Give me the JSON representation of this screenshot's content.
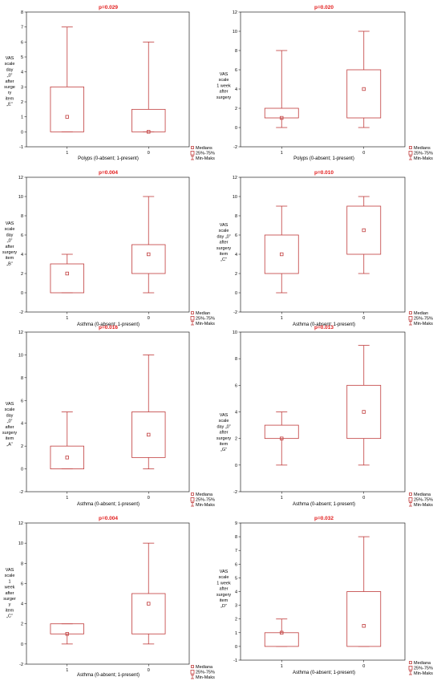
{
  "chart_data": [
    {
      "type": "boxplot",
      "title": "p=0.029",
      "xlabel": "Polyps (0-absent; 1-present)",
      "ylabel": [
        "VAS",
        "scale",
        "day",
        "„0”",
        "after",
        "surge",
        "ry",
        "item",
        "„E”"
      ],
      "ylim": [
        -1,
        8
      ],
      "yticks": [
        -1,
        0,
        1,
        2,
        3,
        4,
        5,
        6,
        7,
        8
      ],
      "categories": [
        "1",
        "0"
      ],
      "boxes": [
        {
          "min": 0,
          "q1": 0,
          "median": 1,
          "q3": 3,
          "max": 7
        },
        {
          "min": 0,
          "q1": 0,
          "median": 0,
          "q3": 1.5,
          "max": 6
        }
      ],
      "legend": [
        "Medians",
        "25%-75%",
        "Min-Maks"
      ]
    },
    {
      "type": "boxplot",
      "title": "p=0.020",
      "xlabel": "Polyps (0-absent; 1-present)",
      "ylabel": [
        "VAS",
        "scale",
        "1 week",
        "after",
        "surgery"
      ],
      "ylim": [
        -2,
        12
      ],
      "yticks": [
        -2,
        0,
        2,
        4,
        6,
        8,
        10,
        12
      ],
      "categories": [
        "1",
        "0"
      ],
      "boxes": [
        {
          "min": 0,
          "q1": 1,
          "median": 1,
          "q3": 2,
          "max": 8
        },
        {
          "min": 0,
          "q1": 1,
          "median": 4,
          "q3": 6,
          "max": 10
        }
      ],
      "legend": [
        "Medians",
        "25%-75%",
        "Min-Maks"
      ]
    },
    {
      "type": "boxplot",
      "title": "p=0.004",
      "xlabel": "Asthma (0-absent; 1-present)",
      "ylabel": [
        "VAS",
        "scale",
        "day",
        "„0”",
        "after",
        "surgery",
        "item",
        "„B”"
      ],
      "ylim": [
        -2,
        12
      ],
      "yticks": [
        -2,
        0,
        2,
        4,
        6,
        8,
        10,
        12
      ],
      "categories": [
        "1",
        "0"
      ],
      "boxes": [
        {
          "min": 0,
          "q1": 0,
          "median": 2,
          "q3": 3,
          "max": 4
        },
        {
          "min": 0,
          "q1": 2,
          "median": 4,
          "q3": 5,
          "max": 10
        }
      ],
      "legend": [
        "Median",
        "25%-75%",
        "Min-Maks"
      ]
    },
    {
      "type": "boxplot",
      "title": "p=0.010",
      "xlabel": "Asthma (0-absent; 1-present)",
      "ylabel": [
        "VAS",
        "scale",
        "day „0”",
        "after",
        "surgery",
        "item",
        "„C”"
      ],
      "ylim": [
        -2,
        12
      ],
      "yticks": [
        -2,
        0,
        2,
        4,
        6,
        8,
        10,
        12
      ],
      "categories": [
        "1",
        "0"
      ],
      "boxes": [
        {
          "min": 0,
          "q1": 2,
          "median": 4,
          "q3": 6,
          "max": 9
        },
        {
          "min": 2,
          "q1": 4,
          "median": 6.5,
          "q3": 9,
          "max": 10
        }
      ],
      "legend": [
        "Median",
        "25%-75%",
        "Min-Maks"
      ]
    },
    {
      "type": "boxplot",
      "title": "p=0.016",
      "xlabel": "Asthma (0-absent; 1-present)",
      "ylabel": [
        "VAS",
        "scale",
        "day",
        "„0”",
        "after",
        "surgery",
        "item",
        "„A”"
      ],
      "ylim": [
        -2,
        12
      ],
      "yticks": [
        -2,
        0,
        2,
        4,
        6,
        8,
        10,
        12
      ],
      "categories": [
        "1",
        "0"
      ],
      "boxes": [
        {
          "min": 0,
          "q1": 0,
          "median": 1,
          "q3": 2,
          "max": 5
        },
        {
          "min": 0,
          "q1": 1,
          "median": 3,
          "q3": 5,
          "max": 10
        }
      ],
      "legend": [
        "Mediana",
        "25%-75%",
        "Min-Maks"
      ]
    },
    {
      "type": "boxplot",
      "title": "p=0.013",
      "xlabel": "Asthma (0-absent; 1-present)",
      "ylabel": [
        "VAS",
        "scale",
        "day „0”",
        "after",
        "surgery",
        "item",
        "„G”"
      ],
      "ylim": [
        -2,
        10
      ],
      "yticks": [
        -2,
        0,
        2,
        4,
        6,
        8,
        10
      ],
      "categories": [
        "1",
        "0"
      ],
      "boxes": [
        {
          "min": 0,
          "q1": 2,
          "median": 2,
          "q3": 3,
          "max": 4
        },
        {
          "min": 0,
          "q1": 2,
          "median": 4,
          "q3": 6,
          "max": 9
        }
      ],
      "legend": [
        "Mediana",
        "25%-75%",
        "Min-Maks"
      ]
    },
    {
      "type": "boxplot",
      "title": "p=0.004",
      "xlabel": "Asthma (0-absent; 1-present)",
      "ylabel": [
        "VAS",
        "scale",
        "1",
        "week",
        "after",
        "surger",
        "y",
        "item",
        "„C”"
      ],
      "ylim": [
        -2,
        12
      ],
      "yticks": [
        -2,
        0,
        2,
        4,
        6,
        8,
        10,
        12
      ],
      "categories": [
        "1",
        "0"
      ],
      "boxes": [
        {
          "min": 0,
          "q1": 1,
          "median": 1,
          "q3": 2,
          "max": 2
        },
        {
          "min": 0,
          "q1": 1,
          "median": 4,
          "q3": 5,
          "max": 10
        }
      ],
      "legend": [
        "Mediana",
        "25%-75%",
        "Min-Maks"
      ]
    },
    {
      "type": "boxplot",
      "title": "p=0.032",
      "xlabel": "Asthma (0-absent; 1-present)",
      "ylabel": [
        "VAS",
        "scale",
        "1 week",
        "after",
        "surgery",
        "item",
        "„D”"
      ],
      "ylim": [
        -1,
        9
      ],
      "yticks": [
        -1,
        0,
        1,
        2,
        3,
        4,
        5,
        6,
        7,
        8,
        9
      ],
      "categories": [
        "1",
        "0"
      ],
      "boxes": [
        {
          "min": 0,
          "q1": 0,
          "median": 1,
          "q3": 1,
          "max": 2
        },
        {
          "min": 0,
          "q1": 0,
          "median": 1.5,
          "q3": 4,
          "max": 8
        }
      ],
      "legend": [
        "Mediana",
        "25%-75%",
        "Min-Maks"
      ]
    }
  ]
}
